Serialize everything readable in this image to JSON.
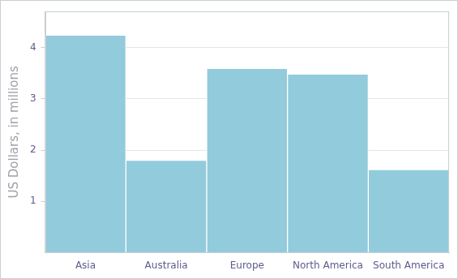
{
  "chart_data": {
    "type": "bar",
    "y_label": "US Dollars, in millions",
    "categories": [
      "Asia",
      "Australia",
      "Europe",
      "North America",
      "South America"
    ],
    "values": [
      4.24,
      1.8,
      3.59,
      3.48,
      1.62
    ],
    "color": "#92cbdb",
    "ylim": [
      0,
      4.7
    ],
    "yticks": [
      1,
      2,
      3,
      4
    ],
    "grid": true
  }
}
